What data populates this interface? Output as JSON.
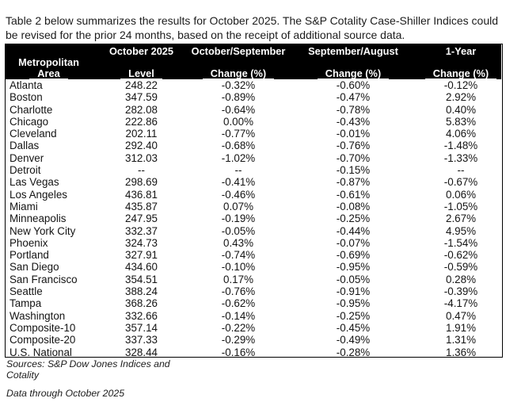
{
  "intro": {
    "lines": [
      "Table 2 below summarizes the results for October 2025. The S&P Cotality Case-Shiller Indices could",
      "be revised for the prior 24 months, based on the receipt of additional source data."
    ]
  },
  "table": {
    "header_cols": [
      {
        "line1": "",
        "line2": "Metropolitan",
        "line3": "Area"
      },
      {
        "line1": "October 2025",
        "line2": "",
        "line3": "Level"
      },
      {
        "line1": "October/September",
        "line2": "",
        "line3": "Change (%)"
      },
      {
        "line1": "September/August",
        "line2": "",
        "line3": "Change (%)"
      },
      {
        "line1": "1-Year",
        "line2": "",
        "line3": "Change (%)"
      }
    ],
    "rows": [
      {
        "area": "Atlanta",
        "level": "248.22",
        "oct_sep": "-0.32%",
        "sep_aug": "-0.60%",
        "one_year": "-0.12%"
      },
      {
        "area": "Boston",
        "level": "347.59",
        "oct_sep": "-0.89%",
        "sep_aug": "-0.47%",
        "one_year": "2.92%"
      },
      {
        "area": "Charlotte",
        "level": "282.08",
        "oct_sep": "-0.64%",
        "sep_aug": "-0.78%",
        "one_year": "0.40%"
      },
      {
        "area": "Chicago",
        "level": "222.86",
        "oct_sep": "0.00%",
        "sep_aug": "-0.43%",
        "one_year": "5.83%"
      },
      {
        "area": "Cleveland",
        "level": "202.11",
        "oct_sep": "-0.77%",
        "sep_aug": "-0.01%",
        "one_year": "4.06%"
      },
      {
        "area": "Dallas",
        "level": "292.40",
        "oct_sep": "-0.68%",
        "sep_aug": "-0.76%",
        "one_year": "-1.48%"
      },
      {
        "area": "Denver",
        "level": "312.03",
        "oct_sep": "-1.02%",
        "sep_aug": "-0.70%",
        "one_year": "-1.33%"
      },
      {
        "area": "Detroit",
        "level": "--",
        "oct_sep": "--",
        "sep_aug": "-0.15%",
        "one_year": "--"
      },
      {
        "area": "Las Vegas",
        "level": "298.69",
        "oct_sep": "-0.41%",
        "sep_aug": "-0.87%",
        "one_year": "-0.67%"
      },
      {
        "area": "Los Angeles",
        "level": "436.81",
        "oct_sep": "-0.46%",
        "sep_aug": "-0.61%",
        "one_year": "0.06%"
      },
      {
        "area": "Miami",
        "level": "435.87",
        "oct_sep": "0.07%",
        "sep_aug": "-0.08%",
        "one_year": "-1.05%"
      },
      {
        "area": "Minneapolis",
        "level": "247.95",
        "oct_sep": "-0.19%",
        "sep_aug": "-0.25%",
        "one_year": "2.67%"
      },
      {
        "area": "New York City",
        "level": "332.37",
        "oct_sep": "-0.05%",
        "sep_aug": "-0.44%",
        "one_year": "4.95%"
      },
      {
        "area": "Phoenix",
        "level": "324.73",
        "oct_sep": "0.43%",
        "sep_aug": "-0.07%",
        "one_year": "-1.54%"
      },
      {
        "area": "Portland",
        "level": "327.91",
        "oct_sep": "-0.74%",
        "sep_aug": "-0.69%",
        "one_year": "-0.62%"
      },
      {
        "area": "San Diego",
        "level": "434.60",
        "oct_sep": "-0.10%",
        "sep_aug": "-0.95%",
        "one_year": "-0.59%"
      },
      {
        "area": "San Francisco",
        "level": "354.51",
        "oct_sep": "0.17%",
        "sep_aug": "-0.05%",
        "one_year": "0.28%"
      },
      {
        "area": "Seattle",
        "level": "388.24",
        "oct_sep": "-0.76%",
        "sep_aug": "-0.91%",
        "one_year": "-0.39%"
      },
      {
        "area": "Tampa",
        "level": "368.26",
        "oct_sep": "-0.62%",
        "sep_aug": "-0.95%",
        "one_year": "-4.17%"
      },
      {
        "area": "Washington",
        "level": "332.66",
        "oct_sep": "-0.14%",
        "sep_aug": "-0.25%",
        "one_year": "0.47%"
      },
      {
        "area": "Composite-10",
        "level": "357.14",
        "oct_sep": "-0.22%",
        "sep_aug": "-0.45%",
        "one_year": "1.91%"
      },
      {
        "area": "Composite-20",
        "level": "337.33",
        "oct_sep": "-0.29%",
        "sep_aug": "-0.49%",
        "one_year": "1.31%"
      },
      {
        "area": "U.S. National",
        "level": "328.44",
        "oct_sep": "-0.16%",
        "sep_aug": "-0.28%",
        "one_year": "1.36%"
      }
    ]
  },
  "footer": {
    "sources_lines": [
      "Sources: S&P Dow Jones Indices and",
      "Cotality"
    ],
    "data_through": "Data through October 2025"
  },
  "colors": {
    "header_bg": "#000000",
    "header_text": "#ffffff",
    "body_text": "#141414",
    "border": "#000000"
  }
}
